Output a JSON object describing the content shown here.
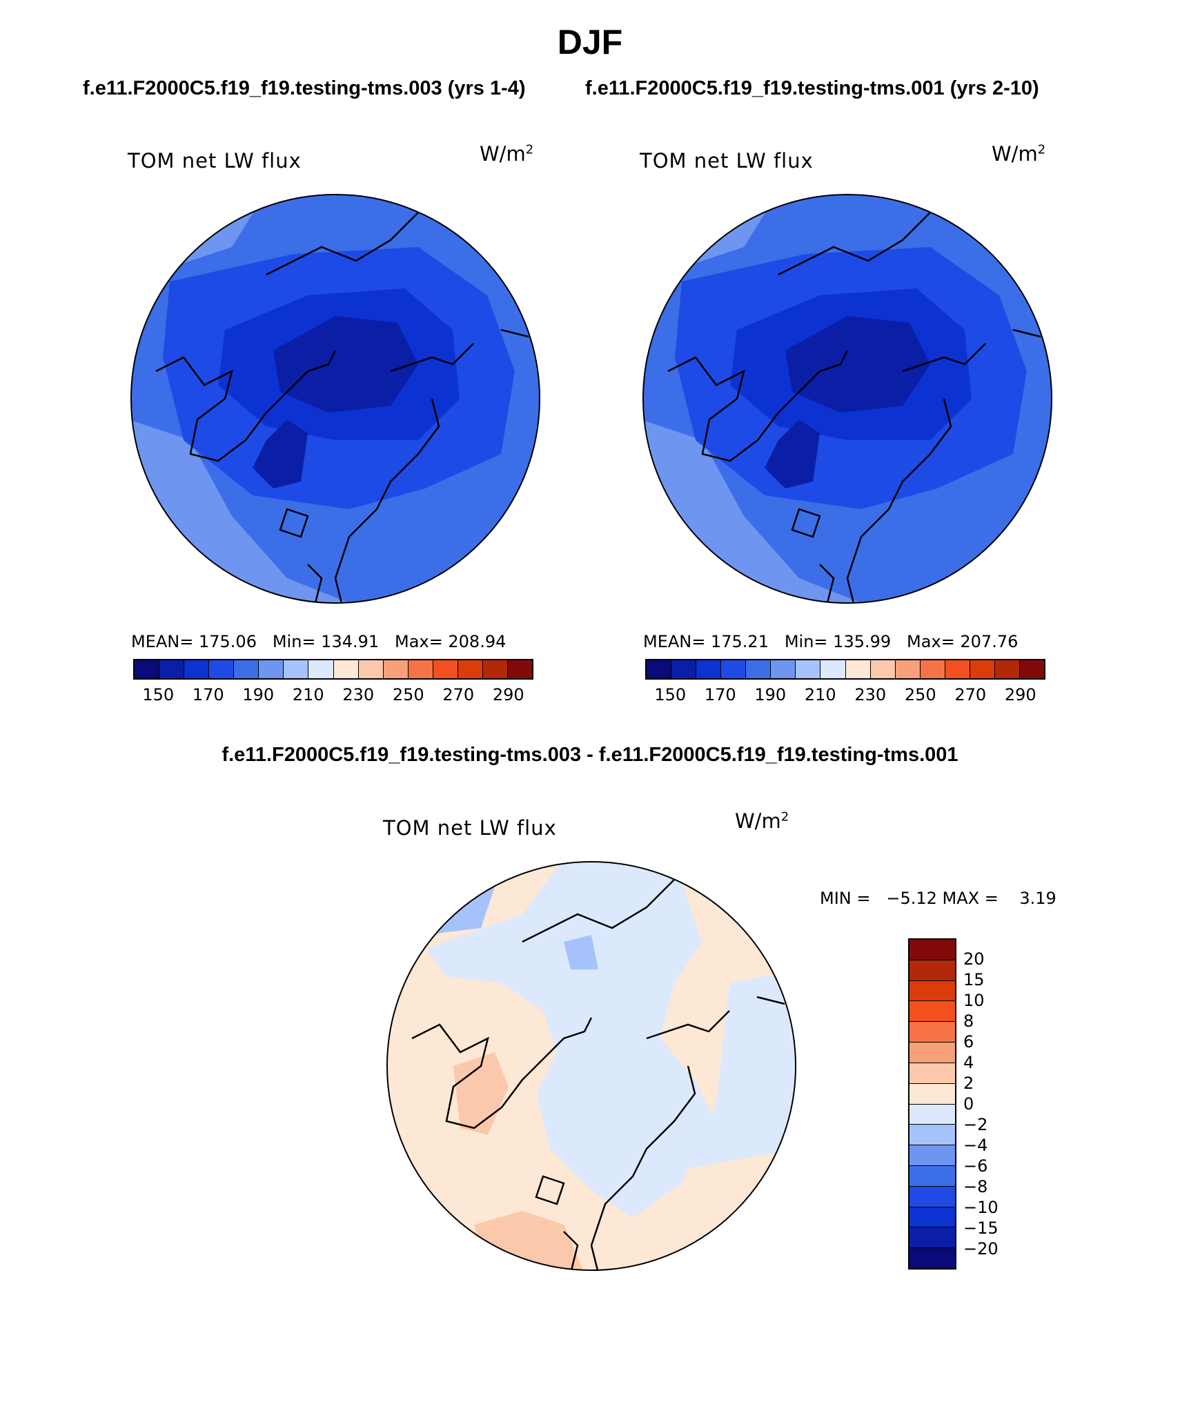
{
  "title": "DJF",
  "panel1": {
    "case": "f.e11.F2000C5.f19_f19.testing-tms.003 (yrs 1-4)",
    "label": "TOM net LW flux",
    "units": "W/m",
    "units_sup": "2",
    "stats": "MEAN= 175.06   Min= 134.91   Max= 208.94"
  },
  "panel2": {
    "case": "f.e11.F2000C5.f19_f19.testing-tms.001 (yrs 2-10)",
    "label": "TOM net LW flux",
    "units": "W/m",
    "units_sup": "2",
    "stats": "MEAN= 175.21   Min= 135.99   Max= 207.76"
  },
  "diff": {
    "case": "f.e11.F2000C5.f19_f19.testing-tms.003 - f.e11.F2000C5.f19_f19.testing-tms.001",
    "label": "TOM net LW flux",
    "units": "W/m",
    "units_sup": "2",
    "minmax": "MIN =   −5.12 MAX =    3.19"
  },
  "abs_colorbar": {
    "colors": [
      "#0a0a7a",
      "#0a1ea6",
      "#0d32d2",
      "#1e4be6",
      "#3c6ee8",
      "#6e96f0",
      "#a5c3fa",
      "#dce9fc",
      "#fde8d6",
      "#fbc8ac",
      "#f7a07a",
      "#f57346",
      "#f2501e",
      "#dc3c0a",
      "#b4280a",
      "#820a0a"
    ],
    "ticks": [
      "150",
      "170",
      "190",
      "210",
      "230",
      "250",
      "270",
      "290"
    ]
  },
  "diff_colorbar": {
    "colors": [
      "#820a0a",
      "#b4280a",
      "#dc3c0a",
      "#f2501e",
      "#f57346",
      "#f7a07a",
      "#fbc8ac",
      "#fde8d6",
      "#dce9fc",
      "#a5c3fa",
      "#6e96f0",
      "#3c6ee8",
      "#1e4be6",
      "#0d32d2",
      "#0a1ea6",
      "#0a0a7a"
    ],
    "ticks": [
      "20",
      "15",
      "10",
      "8",
      "6",
      "4",
      "2",
      "0",
      "−2",
      "−4",
      "−6",
      "−8",
      "−10",
      "−15",
      "−20"
    ]
  },
  "map_colors": {
    "abs_base": "#3c6ee8",
    "abs_mid": "#1e4be6",
    "abs_dark": "#0d32d2",
    "abs_darker": "#0a1ea6",
    "abs_light": "#6e96f0",
    "diff_base": "#fde8d6",
    "diff_pink": "#fbc8ac",
    "diff_lightblue": "#dce9fc",
    "diff_blue": "#a5c3fa"
  }
}
